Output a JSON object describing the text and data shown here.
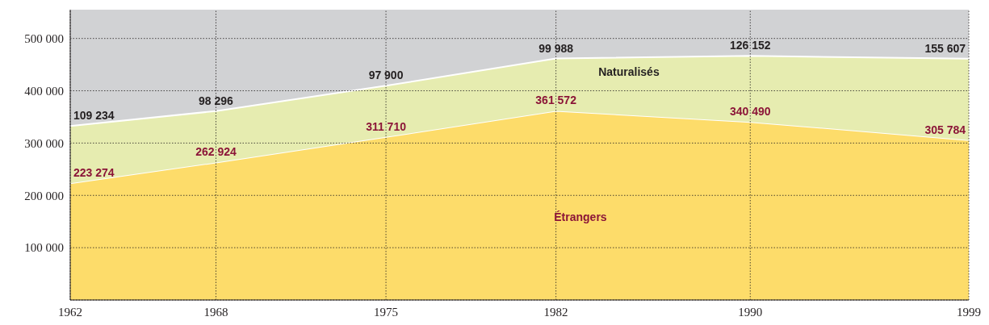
{
  "chart_data": {
    "type": "area",
    "stacked": true,
    "x": [
      1962,
      1968,
      1975,
      1982,
      1990,
      1999
    ],
    "series": [
      {
        "name": "Étrangers",
        "color": "#fddc6a",
        "values": [
          223274,
          262924,
          311710,
          361572,
          340490,
          305784
        ],
        "value_labels": [
          "223 274",
          "262 924",
          "311 710",
          "361 572",
          "340 490",
          "305 784"
        ]
      },
      {
        "name": "Naturalisés",
        "color": "#e6ecb0",
        "values": [
          109234,
          98296,
          97900,
          99988,
          126152,
          155607
        ],
        "value_labels": [
          "109 234",
          "98 296",
          "97 900",
          "99 988",
          "126 152",
          "155 607"
        ]
      }
    ],
    "xlim": [
      1962,
      1999
    ],
    "xticks": [
      1962,
      1968,
      1975,
      1982,
      1990,
      1999
    ],
    "ylim": [
      0,
      555000
    ],
    "yticks": [
      {
        "value": 0,
        "label": null
      },
      {
        "value": 100000,
        "label": "100 000"
      },
      {
        "value": 200000,
        "label": "200 000"
      },
      {
        "value": 300000,
        "label": "300 000"
      },
      {
        "value": 400000,
        "label": "400 000"
      },
      {
        "value": 500000,
        "label": "500 000"
      }
    ],
    "grid": true,
    "line_style": "solid"
  }
}
